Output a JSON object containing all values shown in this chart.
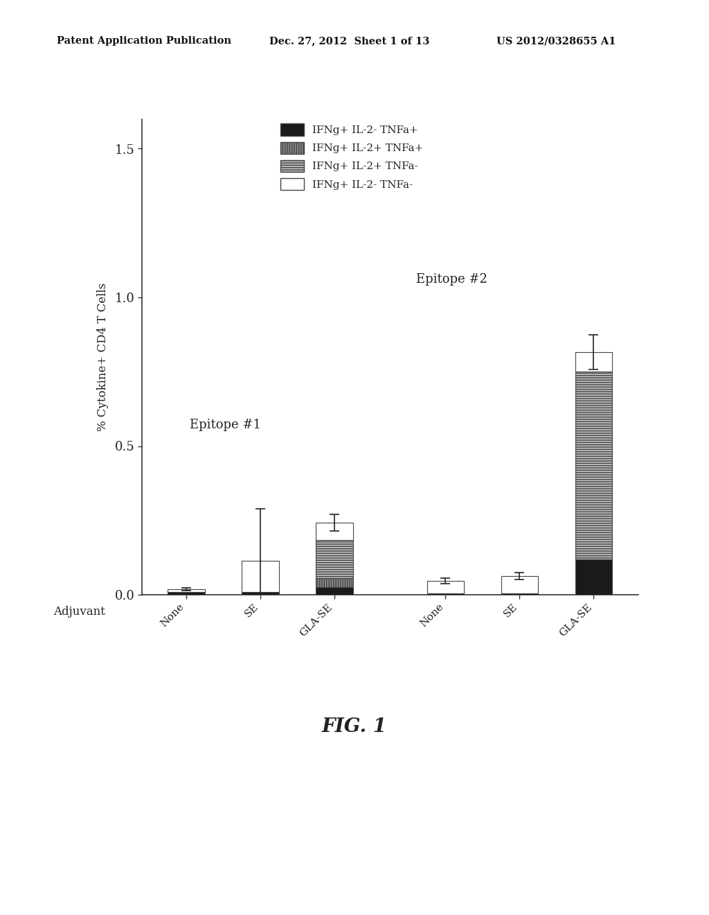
{
  "groups": [
    "Epitope #1",
    "Epitope #2"
  ],
  "conditions": [
    "None",
    "SE",
    "GLA-SE"
  ],
  "ylabel": "% Cytokine+ CD4 T Cells",
  "xlabel": "Adjuvant",
  "ylim": [
    0,
    1.6
  ],
  "yticks": [
    0.0,
    0.5,
    1.0,
    1.5
  ],
  "yticklabels": [
    "0.0",
    "0.5",
    "1.0",
    "1.5"
  ],
  "figure_caption": "FIG. 1",
  "header_left": "Patent Application Publication",
  "header_mid": "Dec. 27, 2012  Sheet 1 of 13",
  "header_right": "US 2012/0328655 A1",
  "legend_labels": [
    "IFNg+ IL-2- TNFa+",
    "IFNg+ IL-2+ TNFa+",
    "IFNg+ IL-2+ TNFa-",
    "IFNg+ IL-2- TNFa-"
  ],
  "bar_data": {
    "ep1_none": {
      "black": 0.01,
      "vert": 0.0,
      "horiz": 0.0,
      "white": 0.008,
      "err": 0.005
    },
    "ep1_se": {
      "black": 0.01,
      "vert": 0.0,
      "horiz": 0.0,
      "white": 0.105,
      "err": 0.175
    },
    "ep1_glase": {
      "black": 0.025,
      "vert": 0.03,
      "horiz": 0.13,
      "white": 0.058,
      "err": 0.028
    },
    "ep2_none": {
      "black": 0.005,
      "vert": 0.0,
      "horiz": 0.0,
      "white": 0.042,
      "err": 0.01
    },
    "ep2_se": {
      "black": 0.005,
      "vert": 0.0,
      "horiz": 0.0,
      "white": 0.058,
      "err": 0.012
    },
    "ep2_glase": {
      "black": 0.12,
      "vert": 0.0,
      "horiz": 0.63,
      "white": 0.065,
      "err": 0.058
    }
  },
  "bar_width": 0.5,
  "background_color": "#ffffff",
  "bar_edge_color": "#444444",
  "text_color": "#222222",
  "epitope1_label": "Epitope #1",
  "epitope2_label": "Epitope #2"
}
